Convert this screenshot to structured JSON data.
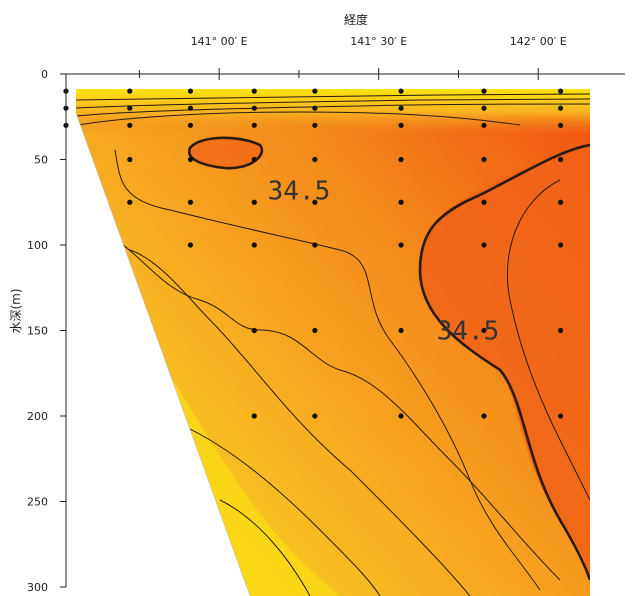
{
  "chart_data": {
    "type": "contour",
    "title": "",
    "xlabel": "経度",
    "ylabel": "水深(m)",
    "x_axis_position": "top",
    "x_ticks": [
      {
        "value": 141.0,
        "label": "141° 00′ E"
      },
      {
        "value": 141.5,
        "label": "141° 30′ E"
      },
      {
        "value": 142.0,
        "label": "142° 00′ E"
      }
    ],
    "xlim": [
      140.52,
      142.25
    ],
    "y_ticks": [
      0,
      50,
      100,
      150,
      200,
      250,
      300
    ],
    "ylim": [
      0,
      300
    ],
    "y_inverted": true,
    "grid": false,
    "contour_labels": [
      {
        "text": "34.5",
        "lon": 141.25,
        "depth": 68
      },
      {
        "text": "34.5",
        "lon": 141.78,
        "depth": 150
      }
    ],
    "sample_stations": [
      {
        "lon": 140.52,
        "depths": [
          10,
          20,
          30
        ]
      },
      {
        "lon": 140.72,
        "depths": [
          10,
          20,
          30,
          50,
          75
        ]
      },
      {
        "lon": 140.91,
        "depths": [
          10,
          20,
          30,
          50,
          75,
          100
        ]
      },
      {
        "lon": 141.11,
        "depths": [
          10,
          20,
          30,
          50,
          75,
          100,
          150,
          200
        ]
      },
      {
        "lon": 141.3,
        "depths": [
          10,
          20,
          30,
          50,
          75,
          100,
          150,
          200
        ]
      },
      {
        "lon": 141.57,
        "depths": [
          10,
          20,
          30,
          50,
          75,
          100,
          150,
          200
        ]
      },
      {
        "lon": 141.83,
        "depths": [
          10,
          20,
          30,
          50,
          75,
          100,
          150,
          200
        ]
      },
      {
        "lon": 142.07,
        "depths": [
          10,
          20,
          30,
          50,
          75,
          100,
          150,
          200
        ]
      }
    ],
    "colors": {
      "high": "#f05a12",
      "mid": "#f6a220",
      "low": "#fbe310",
      "contour_line": "#2a1a10"
    }
  }
}
